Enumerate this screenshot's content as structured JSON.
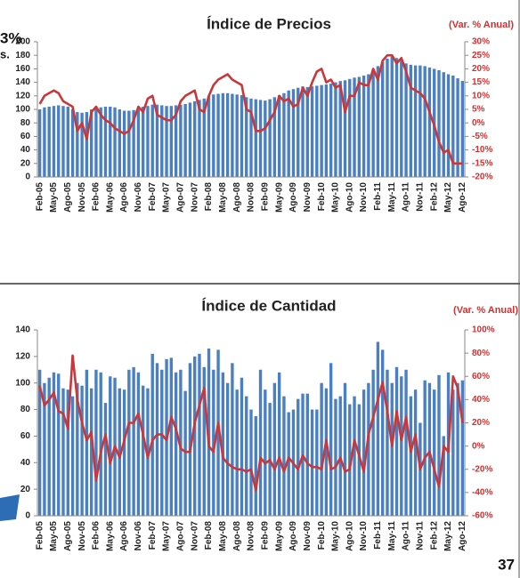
{
  "slide": {
    "fragments": [
      "3%",
      "s."
    ],
    "page_number": "37"
  },
  "chart_data": [
    {
      "type": "bar",
      "title": "Índice de Precios",
      "y2label": "(Var. % Anual)",
      "categories": [
        "Feb-05",
        null,
        null,
        "May-05",
        null,
        null,
        "Ago-05",
        null,
        null,
        "Nov-05",
        null,
        null,
        "Feb-06",
        null,
        null,
        "May-06",
        null,
        null,
        "Ago-06",
        null,
        null,
        "Nov-06",
        null,
        null,
        "Feb-07",
        null,
        null,
        "May-07",
        null,
        null,
        "Ago-07",
        null,
        null,
        "Nov-07",
        null,
        null,
        "Feb-08",
        null,
        null,
        "May-08",
        null,
        null,
        "Ago-08",
        null,
        null,
        "Nov-08",
        null,
        null,
        "Feb-09",
        null,
        null,
        "May-09",
        null,
        null,
        "Ago-09",
        null,
        null,
        "Nov-09",
        null,
        null,
        "Feb-10",
        null,
        null,
        "May-10",
        null,
        null,
        "Ago-10",
        null,
        null,
        "Nov-10",
        null,
        null,
        "Feb-11",
        null,
        null,
        "May-11",
        null,
        null,
        "Ago-11",
        null,
        null,
        "Nov-11",
        null,
        null,
        "Feb-12",
        null,
        null,
        "May-12",
        null,
        null,
        "Ago-12"
      ],
      "series": [
        {
          "type": "bar",
          "color": "#4a7fc1",
          "values": [
            100,
            103,
            104,
            105,
            106,
            105,
            104,
            100,
            96,
            95,
            96,
            100,
            102,
            103,
            104,
            104,
            103,
            100,
            98,
            98,
            99,
            100,
            104,
            105,
            107,
            107,
            106,
            105,
            105,
            106,
            107,
            108,
            110,
            112,
            114,
            116,
            120,
            122,
            123,
            124,
            124,
            123,
            122,
            121,
            118,
            116,
            115,
            114,
            113,
            115,
            118,
            121,
            124,
            128,
            130,
            132,
            134,
            133,
            134,
            135,
            136,
            137,
            138,
            140,
            142,
            143,
            145,
            147,
            148,
            150,
            152,
            158,
            164,
            170,
            175,
            178,
            176,
            172,
            168,
            166,
            165,
            165,
            164,
            162,
            160,
            158,
            155,
            152,
            150,
            146,
            142
          ]
        },
        {
          "type": "line",
          "axis": "y2",
          "color": "#c8383a",
          "values": [
            7,
            10,
            11,
            12,
            11,
            8,
            7,
            6,
            -3,
            0,
            -6,
            4,
            6,
            3,
            1,
            0,
            -2,
            -3,
            -4,
            -3,
            1,
            6,
            4,
            9,
            10,
            3,
            2,
            1,
            1,
            3,
            8,
            10,
            11,
            12,
            5,
            4,
            10,
            14,
            16,
            17,
            18,
            16,
            15,
            14,
            5,
            4,
            -3,
            -3,
            -2,
            1,
            4,
            10,
            8,
            9,
            6,
            7,
            13,
            10,
            15,
            19,
            20,
            15,
            16,
            13,
            14,
            4,
            10,
            10,
            15,
            14,
            14,
            20,
            16,
            23,
            25,
            25,
            22,
            24,
            19,
            13,
            12,
            11,
            9,
            4,
            -1,
            -7,
            -11,
            -10,
            -15,
            -15,
            -15
          ]
        }
      ],
      "ylim": [
        0,
        200
      ],
      "yticks": [
        0,
        20,
        40,
        60,
        80,
        100,
        120,
        140,
        160,
        180,
        200
      ],
      "y2lim": [
        -20,
        30
      ],
      "y2ticks": [
        {
          "value": -20,
          "label": "-20%"
        },
        {
          "value": -15,
          "label": "-15%"
        },
        {
          "value": -10,
          "label": "-10%"
        },
        {
          "value": -5,
          "label": "-5%"
        },
        {
          "value": 0,
          "label": "0%"
        },
        {
          "value": 5,
          "label": "5%"
        },
        {
          "value": 10,
          "label": "10%"
        },
        {
          "value": 15,
          "label": "15%"
        },
        {
          "value": 20,
          "label": "20%"
        },
        {
          "value": 25,
          "label": "25%"
        },
        {
          "value": 30,
          "label": "30%"
        }
      ],
      "grid": false
    },
    {
      "type": "bar",
      "title": "Índice de Cantidad",
      "y2label": "(Var. % Anual)",
      "categories": [
        "Feb-05",
        null,
        null,
        "May-05",
        null,
        null,
        "Ago-05",
        null,
        null,
        "Nov-05",
        null,
        null,
        "Feb-06",
        null,
        null,
        "May-06",
        null,
        null,
        "Ago-06",
        null,
        null,
        "Nov-06",
        null,
        null,
        "Feb-07",
        null,
        null,
        "May-07",
        null,
        null,
        "Ago-07",
        null,
        null,
        "Nov-07",
        null,
        null,
        "Feb-08",
        null,
        null,
        "May-08",
        null,
        null,
        "Ago-08",
        null,
        null,
        "Nov-08",
        null,
        null,
        "Feb-09",
        null,
        null,
        "May-09",
        null,
        null,
        "Ago-09",
        null,
        null,
        "Nov-09",
        null,
        null,
        "Feb-10",
        null,
        null,
        "May-10",
        null,
        null,
        "Ago-10",
        null,
        null,
        "Nov-10",
        null,
        null,
        "Feb-11",
        null,
        null,
        "May-11",
        null,
        null,
        "Ago-11",
        null,
        null,
        "Nov-11",
        null,
        null,
        "Feb-12",
        null,
        null,
        "May-12",
        null,
        null,
        "Ago-12"
      ],
      "series": [
        {
          "type": "bar",
          "color": "#4a7fc1",
          "values": [
            110,
            100,
            104,
            108,
            107,
            96,
            95,
            90,
            100,
            98,
            110,
            96,
            110,
            108,
            85,
            105,
            104,
            96,
            95,
            110,
            112,
            108,
            98,
            96,
            122,
            115,
            110,
            118,
            119,
            108,
            110,
            94,
            115,
            120,
            122,
            112,
            126,
            110,
            125,
            108,
            100,
            115,
            95,
            104,
            90,
            80,
            75,
            110,
            95,
            85,
            100,
            108,
            90,
            78,
            80,
            88,
            92,
            92,
            80,
            80,
            100,
            96,
            115,
            88,
            90,
            100,
            84,
            90,
            84,
            95,
            100,
            110,
            131,
            125,
            110,
            100,
            112,
            105,
            110,
            90,
            95,
            70,
            102,
            100,
            95,
            106,
            60,
            108,
            95,
            100,
            102
          ]
        },
        {
          "type": "line",
          "axis": "y2",
          "color": "#c8383a",
          "values": [
            52,
            35,
            40,
            46,
            30,
            28,
            15,
            78,
            40,
            20,
            5,
            12,
            -30,
            -5,
            10,
            -15,
            0,
            -10,
            5,
            20,
            20,
            28,
            10,
            -10,
            5,
            10,
            10,
            5,
            25,
            15,
            -2,
            -5,
            -5,
            20,
            35,
            50,
            0,
            -5,
            20,
            -10,
            -15,
            -18,
            -20,
            -20,
            -22,
            -20,
            -38,
            -10,
            -15,
            -12,
            -20,
            -10,
            -22,
            -10,
            -15,
            -20,
            -8,
            -15,
            -18,
            -18,
            -20,
            5,
            -20,
            -18,
            -10,
            -22,
            -20,
            5,
            -8,
            -22,
            10,
            25,
            40,
            55,
            30,
            0,
            30,
            5,
            25,
            -5,
            10,
            -20,
            -10,
            -5,
            -20,
            -35,
            0,
            -5,
            60,
            50,
            20
          ]
        }
      ],
      "ylim": [
        0,
        140
      ],
      "yticks": [
        0,
        20,
        40,
        60,
        80,
        100,
        120,
        140
      ],
      "y2lim": [
        -60,
        100
      ],
      "y2ticks": [
        {
          "value": -60,
          "label": "-60%"
        },
        {
          "value": -40,
          "label": "-40%"
        },
        {
          "value": -20,
          "label": "-20%"
        },
        {
          "value": 0,
          "label": "0%"
        },
        {
          "value": 20,
          "label": "20%"
        },
        {
          "value": 40,
          "label": "40%"
        },
        {
          "value": 60,
          "label": "60%"
        },
        {
          "value": 80,
          "label": "80%"
        },
        {
          "value": 100,
          "label": "100%"
        }
      ],
      "grid": false
    }
  ]
}
